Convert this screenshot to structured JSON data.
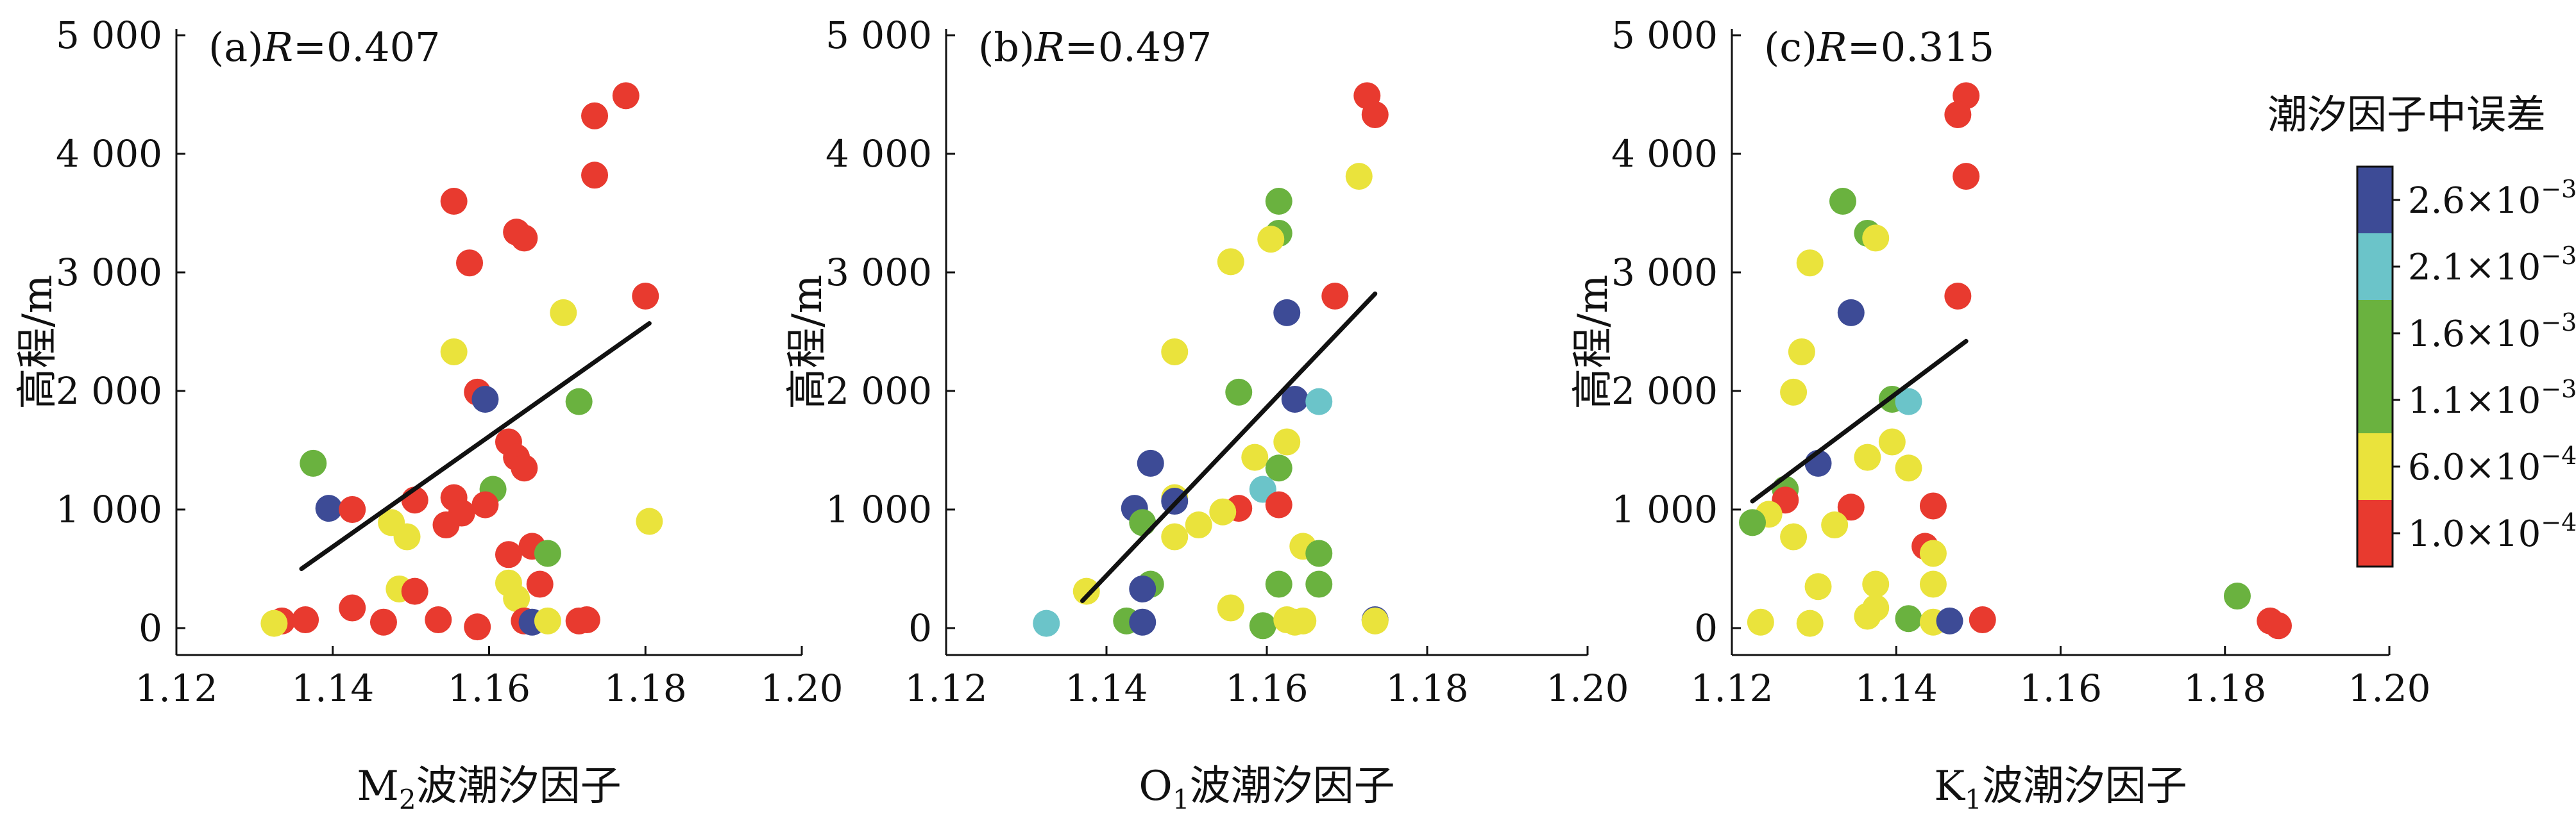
{
  "chart_data": [
    {
      "type": "scatter",
      "panel_label": "(a)",
      "r_symbol": "R",
      "r_value": "=0.407",
      "xlabel_main": "M",
      "xlabel_sub": "2",
      "xlabel_rest": "波潮汐因子",
      "ylabel": "高程/m",
      "xlim": [
        1.12,
        1.2
      ],
      "ylim": [
        -200,
        5000
      ],
      "xticks": [
        {
          "value": 1.12,
          "label": "1.12"
        },
        {
          "value": 1.14,
          "label": "1.14"
        },
        {
          "value": 1.16,
          "label": "1.16"
        },
        {
          "value": 1.18,
          "label": "1.18"
        },
        {
          "value": 1.2,
          "label": "1.20"
        }
      ],
      "yticks": [
        {
          "value": 0,
          "label": "0"
        },
        {
          "value": 1000,
          "label": "1 000"
        },
        {
          "value": 2000,
          "label": "2 000"
        },
        {
          "value": 3000,
          "label": "3 000"
        },
        {
          "value": 4000,
          "label": "4 000"
        },
        {
          "value": 5000,
          "label": "5 000"
        }
      ],
      "fit_line": {
        "x": [
          1.136,
          1.1805
        ],
        "y": [
          500,
          2570
        ]
      },
      "points": [
        {
          "x": 1.1775,
          "y": 4490,
          "c": 0
        },
        {
          "x": 1.1735,
          "y": 4320,
          "c": 0
        },
        {
          "x": 1.1735,
          "y": 3820,
          "c": 0
        },
        {
          "x": 1.1555,
          "y": 3600,
          "c": 0
        },
        {
          "x": 1.1635,
          "y": 3340,
          "c": 0
        },
        {
          "x": 1.1645,
          "y": 3290,
          "c": 0
        },
        {
          "x": 1.1575,
          "y": 3080,
          "c": 0
        },
        {
          "x": 1.18,
          "y": 2800,
          "c": 0
        },
        {
          "x": 1.1695,
          "y": 2660,
          "c": 1
        },
        {
          "x": 1.1555,
          "y": 2330,
          "c": 1
        },
        {
          "x": 1.1585,
          "y": 1990,
          "c": 0
        },
        {
          "x": 1.1595,
          "y": 1930,
          "c": 5
        },
        {
          "x": 1.1715,
          "y": 1910,
          "c": 2
        },
        {
          "x": 1.1625,
          "y": 1570,
          "c": 0
        },
        {
          "x": 1.1635,
          "y": 1440,
          "c": 0
        },
        {
          "x": 1.1645,
          "y": 1350,
          "c": 0
        },
        {
          "x": 1.1375,
          "y": 1390,
          "c": 2
        },
        {
          "x": 1.1605,
          "y": 1170,
          "c": 2
        },
        {
          "x": 1.1555,
          "y": 1100,
          "c": 0
        },
        {
          "x": 1.1505,
          "y": 1080,
          "c": 0
        },
        {
          "x": 1.1395,
          "y": 1010,
          "c": 5
        },
        {
          "x": 1.1425,
          "y": 1000,
          "c": 0
        },
        {
          "x": 1.1565,
          "y": 970,
          "c": 0
        },
        {
          "x": 1.1595,
          "y": 1040,
          "c": 0
        },
        {
          "x": 1.1475,
          "y": 890,
          "c": 1
        },
        {
          "x": 1.1545,
          "y": 870,
          "c": 0
        },
        {
          "x": 1.1805,
          "y": 900,
          "c": 1
        },
        {
          "x": 1.1495,
          "y": 770,
          "c": 1
        },
        {
          "x": 1.1655,
          "y": 690,
          "c": 0
        },
        {
          "x": 1.1675,
          "y": 630,
          "c": 2
        },
        {
          "x": 1.1625,
          "y": 620,
          "c": 0
        },
        {
          "x": 1.1625,
          "y": 380,
          "c": 1
        },
        {
          "x": 1.1665,
          "y": 370,
          "c": 0
        },
        {
          "x": 1.1485,
          "y": 330,
          "c": 1
        },
        {
          "x": 1.1505,
          "y": 310,
          "c": 0
        },
        {
          "x": 1.1635,
          "y": 250,
          "c": 1
        },
        {
          "x": 1.1425,
          "y": 170,
          "c": 0
        },
        {
          "x": 1.1335,
          "y": 60,
          "c": 0
        },
        {
          "x": 1.1365,
          "y": 70,
          "c": 0
        },
        {
          "x": 1.1325,
          "y": 40,
          "c": 1
        },
        {
          "x": 1.1465,
          "y": 50,
          "c": 0
        },
        {
          "x": 1.1535,
          "y": 70,
          "c": 0
        },
        {
          "x": 1.1585,
          "y": 10,
          "c": 0
        },
        {
          "x": 1.1645,
          "y": 60,
          "c": 0
        },
        {
          "x": 1.1655,
          "y": 50,
          "c": 5
        },
        {
          "x": 1.1675,
          "y": 60,
          "c": 1
        },
        {
          "x": 1.1715,
          "y": 60,
          "c": 0
        },
        {
          "x": 1.1725,
          "y": 70,
          "c": 0
        }
      ]
    },
    {
      "type": "scatter",
      "panel_label": "(b)",
      "r_symbol": "R",
      "r_value": "=0.497",
      "xlabel_main": "O",
      "xlabel_sub": "1",
      "xlabel_rest": "波潮汐因子",
      "ylabel": "高程/m",
      "xlim": [
        1.12,
        1.2
      ],
      "ylim": [
        -200,
        5000
      ],
      "xticks": [
        {
          "value": 1.12,
          "label": "1.12"
        },
        {
          "value": 1.14,
          "label": "1.14"
        },
        {
          "value": 1.16,
          "label": "1.16"
        },
        {
          "value": 1.18,
          "label": "1.18"
        },
        {
          "value": 1.2,
          "label": "1.20"
        }
      ],
      "yticks": [
        {
          "value": 0,
          "label": "0"
        },
        {
          "value": 1000,
          "label": "1 000"
        },
        {
          "value": 2000,
          "label": "2 000"
        },
        {
          "value": 3000,
          "label": "3 000"
        },
        {
          "value": 4000,
          "label": "4 000"
        },
        {
          "value": 5000,
          "label": "5 000"
        }
      ],
      "fit_line": {
        "x": [
          1.137,
          1.1735
        ],
        "y": [
          230,
          2820
        ]
      },
      "points": [
        {
          "x": 1.1725,
          "y": 4490,
          "c": 0
        },
        {
          "x": 1.1735,
          "y": 4330,
          "c": 0
        },
        {
          "x": 1.1715,
          "y": 3810,
          "c": 1
        },
        {
          "x": 1.1615,
          "y": 3600,
          "c": 2
        },
        {
          "x": 1.1615,
          "y": 3330,
          "c": 2
        },
        {
          "x": 1.1605,
          "y": 3280,
          "c": 1
        },
        {
          "x": 1.1555,
          "y": 3090,
          "c": 1
        },
        {
          "x": 1.1685,
          "y": 2800,
          "c": 0
        },
        {
          "x": 1.1625,
          "y": 2660,
          "c": 5
        },
        {
          "x": 1.1485,
          "y": 2330,
          "c": 1
        },
        {
          "x": 1.1565,
          "y": 1990,
          "c": 2
        },
        {
          "x": 1.1635,
          "y": 1930,
          "c": 5
        },
        {
          "x": 1.1665,
          "y": 1910,
          "c": 3
        },
        {
          "x": 1.1625,
          "y": 1570,
          "c": 1
        },
        {
          "x": 1.1585,
          "y": 1440,
          "c": 1
        },
        {
          "x": 1.1455,
          "y": 1390,
          "c": 5
        },
        {
          "x": 1.1615,
          "y": 1350,
          "c": 2
        },
        {
          "x": 1.1595,
          "y": 1170,
          "c": 3
        },
        {
          "x": 1.1485,
          "y": 1100,
          "c": 1
        },
        {
          "x": 1.1485,
          "y": 1070,
          "c": 5
        },
        {
          "x": 1.1565,
          "y": 1010,
          "c": 0
        },
        {
          "x": 1.1545,
          "y": 980,
          "c": 1
        },
        {
          "x": 1.1615,
          "y": 1040,
          "c": 0
        },
        {
          "x": 1.1435,
          "y": 1010,
          "c": 5
        },
        {
          "x": 1.1445,
          "y": 890,
          "c": 2
        },
        {
          "x": 1.1515,
          "y": 870,
          "c": 1
        },
        {
          "x": 1.1485,
          "y": 770,
          "c": 1
        },
        {
          "x": 1.1645,
          "y": 690,
          "c": 1
        },
        {
          "x": 1.1665,
          "y": 630,
          "c": 2
        },
        {
          "x": 1.1455,
          "y": 370,
          "c": 2
        },
        {
          "x": 1.1445,
          "y": 330,
          "c": 5
        },
        {
          "x": 1.1375,
          "y": 310,
          "c": 1
        },
        {
          "x": 1.1615,
          "y": 370,
          "c": 2
        },
        {
          "x": 1.1665,
          "y": 370,
          "c": 2
        },
        {
          "x": 1.1555,
          "y": 170,
          "c": 1
        },
        {
          "x": 1.1325,
          "y": 40,
          "c": 3
        },
        {
          "x": 1.1425,
          "y": 60,
          "c": 2
        },
        {
          "x": 1.1445,
          "y": 50,
          "c": 5
        },
        {
          "x": 1.1595,
          "y": 20,
          "c": 2
        },
        {
          "x": 1.1625,
          "y": 70,
          "c": 1
        },
        {
          "x": 1.1635,
          "y": 50,
          "c": 1
        },
        {
          "x": 1.1645,
          "y": 60,
          "c": 1
        },
        {
          "x": 1.1735,
          "y": 70,
          "c": 5
        },
        {
          "x": 1.1735,
          "y": 60,
          "c": 1
        }
      ]
    },
    {
      "type": "scatter",
      "panel_label": "(c)",
      "r_symbol": "R",
      "r_value": "=0.315",
      "xlabel_main": "K",
      "xlabel_sub": "1",
      "xlabel_rest": "波潮汐因子",
      "ylabel": "高程/m",
      "xlim": [
        1.12,
        1.2
      ],
      "ylim": [
        -200,
        5000
      ],
      "xticks": [
        {
          "value": 1.12,
          "label": "1.12"
        },
        {
          "value": 1.14,
          "label": "1.14"
        },
        {
          "value": 1.16,
          "label": "1.16"
        },
        {
          "value": 1.18,
          "label": "1.18"
        },
        {
          "value": 1.2,
          "label": "1.20"
        }
      ],
      "yticks": [
        {
          "value": 0,
          "label": "0"
        },
        {
          "value": 1000,
          "label": "1 000"
        },
        {
          "value": 2000,
          "label": "2 000"
        },
        {
          "value": 3000,
          "label": "3 000"
        },
        {
          "value": 4000,
          "label": "4 000"
        },
        {
          "value": 5000,
          "label": "5 000"
        }
      ],
      "fit_line": {
        "x": [
          1.1225,
          1.1485
        ],
        "y": [
          1070,
          2420
        ]
      },
      "points": [
        {
          "x": 1.1485,
          "y": 4490,
          "c": 0
        },
        {
          "x": 1.1475,
          "y": 4330,
          "c": 0
        },
        {
          "x": 1.1485,
          "y": 3810,
          "c": 0
        },
        {
          "x": 1.1335,
          "y": 3600,
          "c": 2
        },
        {
          "x": 1.1365,
          "y": 3330,
          "c": 2
        },
        {
          "x": 1.1375,
          "y": 3290,
          "c": 1
        },
        {
          "x": 1.1295,
          "y": 3080,
          "c": 1
        },
        {
          "x": 1.1475,
          "y": 2800,
          "c": 0
        },
        {
          "x": 1.1345,
          "y": 2660,
          "c": 5
        },
        {
          "x": 1.1285,
          "y": 2330,
          "c": 1
        },
        {
          "x": 1.1275,
          "y": 1990,
          "c": 1
        },
        {
          "x": 1.1395,
          "y": 1930,
          "c": 2
        },
        {
          "x": 1.1415,
          "y": 1910,
          "c": 3
        },
        {
          "x": 1.1395,
          "y": 1570,
          "c": 1
        },
        {
          "x": 1.1365,
          "y": 1440,
          "c": 1
        },
        {
          "x": 1.1305,
          "y": 1390,
          "c": 5
        },
        {
          "x": 1.1415,
          "y": 1350,
          "c": 1
        },
        {
          "x": 1.1265,
          "y": 1170,
          "c": 2
        },
        {
          "x": 1.1265,
          "y": 1080,
          "c": 0
        },
        {
          "x": 1.1345,
          "y": 1020,
          "c": 0
        },
        {
          "x": 1.1445,
          "y": 1030,
          "c": 0
        },
        {
          "x": 1.1245,
          "y": 960,
          "c": 1
        },
        {
          "x": 1.1225,
          "y": 890,
          "c": 2
        },
        {
          "x": 1.1325,
          "y": 870,
          "c": 1
        },
        {
          "x": 1.1275,
          "y": 770,
          "c": 1
        },
        {
          "x": 1.1435,
          "y": 690,
          "c": 0
        },
        {
          "x": 1.1445,
          "y": 630,
          "c": 1
        },
        {
          "x": 1.1375,
          "y": 370,
          "c": 1
        },
        {
          "x": 1.1305,
          "y": 350,
          "c": 1
        },
        {
          "x": 1.1445,
          "y": 370,
          "c": 1
        },
        {
          "x": 1.1375,
          "y": 170,
          "c": 1
        },
        {
          "x": 1.1365,
          "y": 100,
          "c": 1
        },
        {
          "x": 1.1415,
          "y": 80,
          "c": 2
        },
        {
          "x": 1.1235,
          "y": 50,
          "c": 1
        },
        {
          "x": 1.1295,
          "y": 40,
          "c": 1
        },
        {
          "x": 1.1445,
          "y": 50,
          "c": 1
        },
        {
          "x": 1.1465,
          "y": 60,
          "c": 5
        },
        {
          "x": 1.1505,
          "y": 70,
          "c": 0
        },
        {
          "x": 1.1815,
          "y": 270,
          "c": 2
        },
        {
          "x": 1.1855,
          "y": 60,
          "c": 0
        },
        {
          "x": 1.1865,
          "y": 20,
          "c": 0
        }
      ]
    }
  ],
  "legend": {
    "title": "潮汐因子中误差",
    "placement": "right",
    "bins": [
      {
        "label": "2.6×10",
        "exp": "−3",
        "color": "#3d4b96"
      },
      {
        "label": "2.1×10",
        "exp": "−3",
        "color": "#6bc4c9"
      },
      {
        "label": "1.6×10",
        "exp": "−3",
        "color": "#6ab23f"
      },
      {
        "label": "1.1×10",
        "exp": "−3",
        "color": "#6ab23f"
      },
      {
        "label": "6.0×10",
        "exp": "−4",
        "color": "#eae33c"
      },
      {
        "label": "1.0×10",
        "exp": "−4",
        "color": "#e83a2f"
      }
    ]
  },
  "point_colors": [
    "#e83a2f",
    "#eae33c",
    "#6ab23f",
    "#6bc4c9",
    "#6bc4c9",
    "#3d4b96"
  ],
  "fit_line_color": "#111111"
}
